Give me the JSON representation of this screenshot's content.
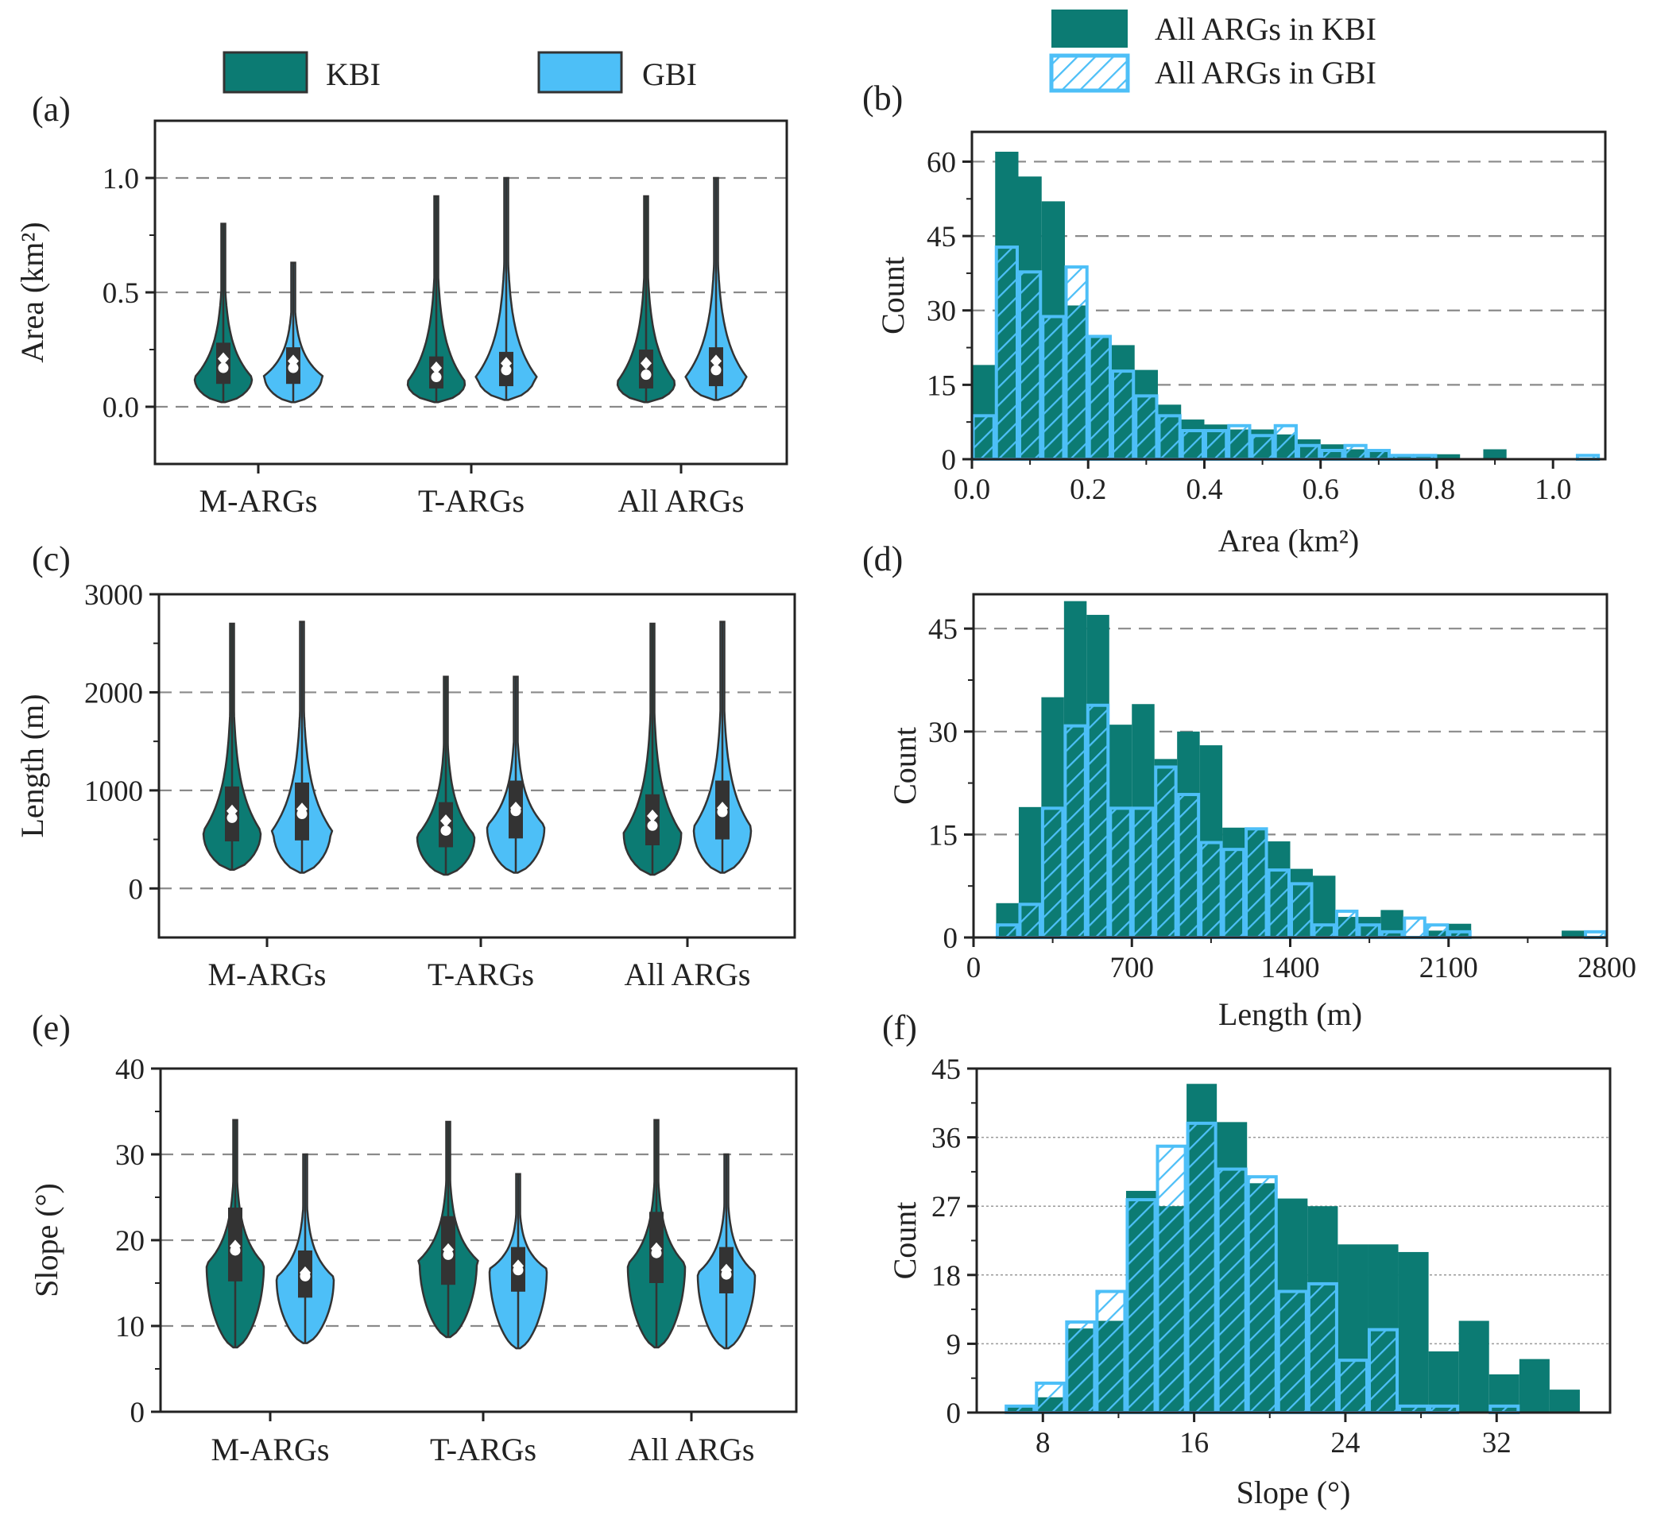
{
  "colors": {
    "kbi": "#0c7b73",
    "gbi": "#4dbff7",
    "edge": "#333333",
    "grid": "#8a8a8a",
    "box": "#333333",
    "marker": "#ffffff"
  },
  "legend_top_left": {
    "kbi": "KBI",
    "gbi": "GBI"
  },
  "legend_top_right": {
    "kbi": "All ARGs in KBI",
    "gbi": "All ARGs in GBI"
  },
  "chart_data": [
    {
      "id": "a",
      "panel_label": "(a)",
      "type": "violin",
      "ylabel": "Area (km²)",
      "ylim": [
        -0.25,
        1.25
      ],
      "yticks": [
        0.0,
        0.5,
        1.0
      ],
      "ytick_labels": [
        "0.0",
        "0.5",
        "1.0"
      ],
      "categories": [
        "M-ARGs",
        "T-ARGs",
        "All ARGs"
      ],
      "series": [
        {
          "name": "KBI",
          "groups": [
            {
              "min": 0.02,
              "max": 0.8,
              "q1": 0.1,
              "median": 0.17,
              "q3": 0.28,
              "mean": 0.21,
              "mode": 0.12
            },
            {
              "min": 0.02,
              "max": 0.92,
              "q1": 0.08,
              "median": 0.13,
              "q3": 0.22,
              "mean": 0.17,
              "mode": 0.1
            },
            {
              "min": 0.02,
              "max": 0.92,
              "q1": 0.08,
              "median": 0.14,
              "q3": 0.25,
              "mean": 0.19,
              "mode": 0.1
            }
          ]
        },
        {
          "name": "GBI",
          "groups": [
            {
              "min": 0.02,
              "max": 0.63,
              "q1": 0.1,
              "median": 0.17,
              "q3": 0.26,
              "mean": 0.2,
              "mode": 0.13
            },
            {
              "min": 0.03,
              "max": 1.0,
              "q1": 0.09,
              "median": 0.16,
              "q3": 0.24,
              "mean": 0.19,
              "mode": 0.13
            },
            {
              "min": 0.03,
              "max": 1.0,
              "q1": 0.09,
              "median": 0.16,
              "q3": 0.26,
              "mean": 0.2,
              "mode": 0.13
            }
          ]
        }
      ]
    },
    {
      "id": "b",
      "panel_label": "(b)",
      "type": "histogram",
      "xlabel": "Area (km²)",
      "ylabel": "Count",
      "xlim": [
        0,
        1.09
      ],
      "ylim": [
        0,
        66
      ],
      "xticks": [
        0.0,
        0.2,
        0.4,
        0.6,
        0.8,
        1.0
      ],
      "xtick_labels": [
        "0.0",
        "0.2",
        "0.4",
        "0.6",
        "0.8",
        "1.0"
      ],
      "yticks": [
        0,
        15,
        30,
        45,
        60
      ],
      "ytick_labels": [
        "0",
        "15",
        "30",
        "45",
        "60"
      ],
      "bin_start": 0.0,
      "bin_width": 0.04,
      "series": [
        {
          "name": "All ARGs in KBI",
          "style": "solid",
          "counts": [
            19,
            62,
            57,
            52,
            31,
            25,
            23,
            18,
            11,
            8,
            7,
            6,
            6,
            5,
            4,
            3,
            2,
            2,
            1,
            1,
            1,
            0,
            2,
            0,
            0,
            0,
            0
          ]
        },
        {
          "name": "All ARGs in GBI",
          "style": "hatched",
          "counts": [
            9,
            43,
            38,
            29,
            39,
            25,
            18,
            13,
            9,
            6,
            6,
            7,
            5,
            7,
            3,
            2,
            3,
            2,
            1,
            1,
            0,
            0,
            0,
            0,
            0,
            0,
            1
          ]
        }
      ]
    },
    {
      "id": "c",
      "panel_label": "(c)",
      "type": "violin",
      "ylabel": "Length (m)",
      "ylim": [
        -500,
        3000
      ],
      "yticks": [
        0,
        1000,
        2000,
        3000
      ],
      "ytick_labels": [
        "0",
        "1000",
        "2000",
        "3000"
      ],
      "categories": [
        "M-ARGs",
        "T-ARGs",
        "All ARGs"
      ],
      "series": [
        {
          "name": "KBI",
          "groups": [
            {
              "min": 190,
              "max": 2700,
              "q1": 480,
              "median": 720,
              "q3": 1040,
              "mean": 790,
              "mode": 560
            },
            {
              "min": 140,
              "max": 2160,
              "q1": 420,
              "median": 590,
              "q3": 880,
              "mean": 690,
              "mode": 520
            },
            {
              "min": 140,
              "max": 2700,
              "q1": 440,
              "median": 640,
              "q3": 960,
              "mean": 740,
              "mode": 540
            }
          ]
        },
        {
          "name": "GBI",
          "groups": [
            {
              "min": 160,
              "max": 2720,
              "q1": 490,
              "median": 760,
              "q3": 1080,
              "mean": 810,
              "mode": 580
            },
            {
              "min": 160,
              "max": 2160,
              "q1": 510,
              "median": 790,
              "q3": 1100,
              "mean": 820,
              "mode": 620
            },
            {
              "min": 160,
              "max": 2720,
              "q1": 500,
              "median": 780,
              "q3": 1100,
              "mean": 820,
              "mode": 600
            }
          ]
        }
      ]
    },
    {
      "id": "d",
      "panel_label": "(d)",
      "type": "histogram",
      "xlabel": "Length (m)",
      "ylabel": "Count",
      "xlim": [
        0,
        2800
      ],
      "ylim": [
        0,
        50
      ],
      "xticks": [
        0,
        700,
        1400,
        2100,
        2800
      ],
      "xtick_labels": [
        "0",
        "700",
        "1400",
        "2100",
        "2800"
      ],
      "yticks": [
        0,
        15,
        30,
        45
      ],
      "ytick_labels": [
        "0",
        "15",
        "30",
        "45"
      ],
      "bin_start": 100,
      "bin_width": 100,
      "series": [
        {
          "name": "All ARGs in KBI",
          "style": "solid",
          "counts": [
            5,
            19,
            35,
            49,
            47,
            31,
            34,
            26,
            30,
            28,
            16,
            16,
            14,
            10,
            9,
            3,
            3,
            4,
            0,
            1,
            2,
            0,
            0,
            0,
            0,
            1,
            0
          ]
        },
        {
          "name": "All ARGs in GBI",
          "style": "hatched",
          "counts": [
            2,
            5,
            19,
            31,
            34,
            19,
            19,
            25,
            21,
            14,
            13,
            16,
            10,
            8,
            2,
            4,
            2,
            1,
            3,
            2,
            1,
            0,
            0,
            0,
            0,
            0,
            1
          ]
        }
      ]
    },
    {
      "id": "e",
      "panel_label": "(e)",
      "type": "violin",
      "ylabel": "Slope (°)",
      "ylim": [
        0,
        40
      ],
      "yticks": [
        0,
        10,
        20,
        30,
        40
      ],
      "ytick_labels": [
        "0",
        "10",
        "20",
        "30",
        "40"
      ],
      "categories": [
        "M-ARGs",
        "T-ARGs",
        "All ARGs"
      ],
      "series": [
        {
          "name": "KBI",
          "groups": [
            {
              "min": 7.5,
              "max": 34,
              "q1": 15.2,
              "median": 18.8,
              "q3": 23.8,
              "mean": 19.3,
              "mode": 17
            },
            {
              "min": 8.7,
              "max": 33.8,
              "q1": 14.8,
              "median": 18.3,
              "q3": 22.8,
              "mean": 18.9,
              "mode": 17.5
            },
            {
              "min": 7.5,
              "max": 34,
              "q1": 15.0,
              "median": 18.5,
              "q3": 23.3,
              "mean": 19.0,
              "mode": 17
            }
          ]
        },
        {
          "name": "GBI",
          "groups": [
            {
              "min": 8.0,
              "max": 30,
              "q1": 13.3,
              "median": 15.8,
              "q3": 18.8,
              "mean": 16.2,
              "mode": 15.5
            },
            {
              "min": 7.4,
              "max": 27.7,
              "q1": 14.0,
              "median": 16.5,
              "q3": 19.2,
              "mean": 17.0,
              "mode": 16.5
            },
            {
              "min": 7.4,
              "max": 30,
              "q1": 13.8,
              "median": 16.0,
              "q3": 19.2,
              "mean": 16.5,
              "mode": 16
            }
          ]
        }
      ]
    },
    {
      "id": "f",
      "panel_label": "(f)",
      "type": "histogram",
      "xlabel": "Slope (°)",
      "ylabel": "Count",
      "xlim": [
        4.5,
        38
      ],
      "ylim": [
        0,
        45
      ],
      "xticks": [
        8,
        16,
        24,
        32
      ],
      "xtick_labels": [
        "8",
        "16",
        "24",
        "32"
      ],
      "yticks": [
        0,
        9,
        18,
        27,
        36,
        45
      ],
      "ytick_labels": [
        "0",
        "9",
        "18",
        "27",
        "36",
        "45"
      ],
      "bin_start": 6.0,
      "bin_width": 1.6,
      "series": [
        {
          "name": "All ARGs in KBI",
          "style": "solid",
          "counts": [
            1,
            2,
            11,
            12,
            29,
            27,
            43,
            38,
            30,
            28,
            27,
            22,
            22,
            21,
            8,
            12,
            5,
            7,
            3
          ]
        },
        {
          "name": "All ARGs in GBI",
          "style": "hatched",
          "counts": [
            1,
            4,
            12,
            16,
            28,
            35,
            38,
            32,
            31,
            16,
            17,
            7,
            11,
            1,
            1,
            0,
            1,
            0,
            0
          ]
        }
      ]
    }
  ]
}
